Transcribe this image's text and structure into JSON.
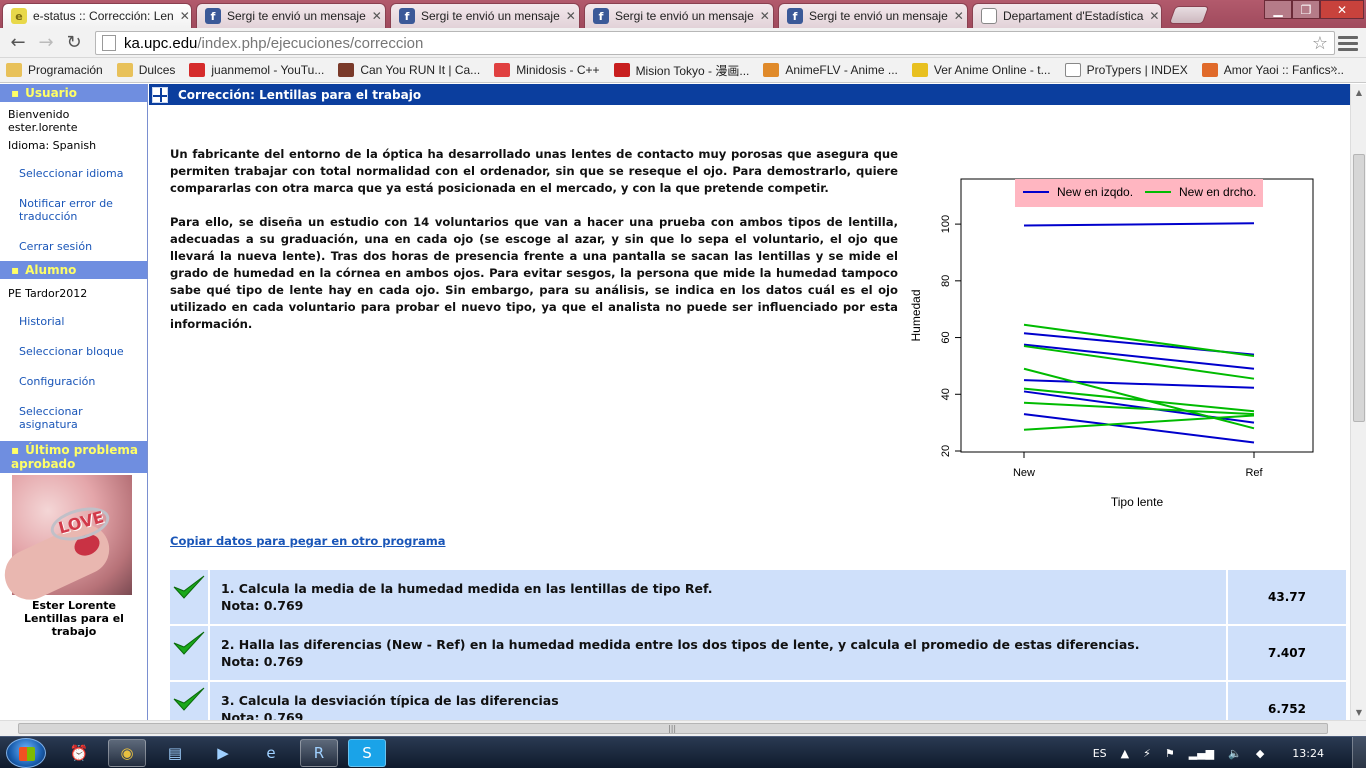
{
  "browser": {
    "tabs": [
      {
        "title": "e-status :: Corrección: Len",
        "icon": "e-status-icon",
        "color": "#e8d84a",
        "letter": "e",
        "active": true
      },
      {
        "title": "Sergi te envió un mensaje",
        "icon": "facebook-icon",
        "color": "#3b5998",
        "letter": "f"
      },
      {
        "title": "Sergi te envió un mensaje",
        "icon": "facebook-icon",
        "color": "#3b5998",
        "letter": "f"
      },
      {
        "title": "Sergi te envió un mensaje",
        "icon": "facebook-icon",
        "color": "#3b5998",
        "letter": "f"
      },
      {
        "title": "Sergi te envió un mensaje",
        "icon": "facebook-icon",
        "color": "#3b5998",
        "letter": "f"
      },
      {
        "title": "Departament d'Estadística",
        "icon": "page-icon",
        "color": "#ffffff",
        "letter": ""
      }
    ],
    "url_host": "ka.upc.edu",
    "url_path": "/index.php/ejecuciones/correccion",
    "bookmarks": [
      {
        "label": "Programación",
        "icon": "folder-icon",
        "color": "#e8c15a"
      },
      {
        "label": "Dulces",
        "icon": "folder-icon",
        "color": "#e8c15a"
      },
      {
        "label": "juanmemol - YouTu...",
        "icon": "youtube-icon",
        "color": "#d52b2b"
      },
      {
        "label": "Can You RUN It | Ca...",
        "icon": "canyourunit-icon",
        "color": "#7a3a2a"
      },
      {
        "label": "Minidosis - C++",
        "icon": "pill-icon",
        "color": "#e04040"
      },
      {
        "label": "Mision Tokyo - 漫画...",
        "icon": "mision-tokyo-icon",
        "color": "#c81e1e"
      },
      {
        "label": "AnimeFLV - Anime ...",
        "icon": "animeflv-icon",
        "color": "#e08a2a"
      },
      {
        "label": "Ver Anime Online - t...",
        "icon": "star-icon",
        "color": "#e8c020"
      },
      {
        "label": "ProTypers | INDEX",
        "icon": "page-icon",
        "color": "#ffffff"
      },
      {
        "label": "Amor Yaoi :: Fanfics ...",
        "icon": "amor-yaoi-icon",
        "color": "#e06a2a"
      }
    ],
    "bookmarks_more": "»"
  },
  "sidebar": {
    "usuario_title": "Usuario",
    "welcome": "Bienvenido",
    "username": "ester.lorente",
    "idioma": "Idioma: Spanish",
    "user_links": [
      "Seleccionar idioma",
      "Notificar error de traducción",
      "Cerrar sesión"
    ],
    "alumno_title": "Alumno",
    "course": "PE Tardor2012",
    "alumno_links": [
      "Historial",
      "Seleccionar bloque",
      "Configuración",
      "Seleccionar asignatura"
    ],
    "ultimo_title": "Último problema aprobado",
    "caption_name": "Ester Lorente",
    "caption_problem": "Lentillas para el trabajo"
  },
  "main": {
    "title": "Corrección: Lentillas para el trabajo",
    "paragraphs": [
      "Un fabricante del entorno de la óptica ha desarrollado unas lentes de contacto muy porosas que asegura que permiten trabajar con total normalidad con el ordenador, sin que se reseque el ojo. Para demostrarlo, quiere compararlas con otra marca que ya está posicionada en el mercado, y con la que pretende competir.",
      "Para ello, se diseña un estudio con 14 voluntarios que van a hacer una prueba con ambos tipos de lentilla, adecuadas a su graduación, una en cada ojo (se escoge al azar, y sin que lo sepa el voluntario, el ojo que llevará la nueva lente). Tras dos horas de presencia frente a una pantalla se sacan las lentillas y se mide el grado de humedad en la córnea en ambos ojos. Para evitar sesgos, la persona que mide la humedad tampoco sabe qué tipo de lente hay en cada ojo. Sin embargo, para su análisis, se indica en los datos cuál es el ojo utilizado en cada voluntario para probar el nuevo tipo, ya que el analista no puede ser influenciado por esta información."
    ],
    "copy_link": "Copiar datos para pegar en otro programa",
    "questions": [
      {
        "text": "1. Calcula la media de la humedad medida en las lentillas de tipo Ref.",
        "nota": "Nota: 0.769",
        "answer": "43.77"
      },
      {
        "text": "2. Halla las diferencias (New - Ref) en la humedad medida entre los dos tipos de lente, y calcula el promedio de estas diferencias.",
        "nota": "Nota: 0.769",
        "answer": "7.407"
      },
      {
        "text": "3. Calcula la desviación típica de las diferencias",
        "nota": "Nota: 0.769",
        "answer": "6.752"
      }
    ]
  },
  "chart_data": {
    "type": "line",
    "categories": [
      "New",
      "Ref"
    ],
    "xlabel": "Tipo lente",
    "ylabel": "Humedad",
    "ylim": [
      20,
      110
    ],
    "yticks": [
      20,
      40,
      60,
      80,
      100
    ],
    "legend": {
      "placement": "top",
      "background": "#ffb6c1"
    },
    "series": [
      {
        "name": "New en izqdo.",
        "color": "#0000cc",
        "lines": [
          [
            99.5,
            100.3
          ],
          [
            61.5,
            54.0
          ],
          [
            57.5,
            49.0
          ],
          [
            45.0,
            42.3
          ],
          [
            41.0,
            30.0
          ],
          [
            33.0,
            23.0
          ]
        ]
      },
      {
        "name": "New en drcho.",
        "color": "#00bb00",
        "lines": [
          [
            64.5,
            53.5
          ],
          [
            57.0,
            45.5
          ],
          [
            49.0,
            28.0
          ],
          [
            42.0,
            34.0
          ],
          [
            37.0,
            33.0
          ],
          [
            27.5,
            32.5
          ]
        ]
      }
    ]
  },
  "taskbar": {
    "language": "ES",
    "time": "13:24",
    "apps": [
      {
        "name": "clock-app-icon",
        "glyph": "⏰"
      },
      {
        "name": "chrome-app-icon",
        "glyph": "◉",
        "active": true
      },
      {
        "name": "explorer-folder-icon",
        "glyph": "▤"
      },
      {
        "name": "media-player-icon",
        "glyph": "▶"
      },
      {
        "name": "internet-explorer-icon",
        "glyph": "e"
      },
      {
        "name": "r-app-icon",
        "glyph": "R",
        "active": true
      },
      {
        "name": "skype-app-icon",
        "glyph": "S",
        "active": true
      }
    ]
  }
}
